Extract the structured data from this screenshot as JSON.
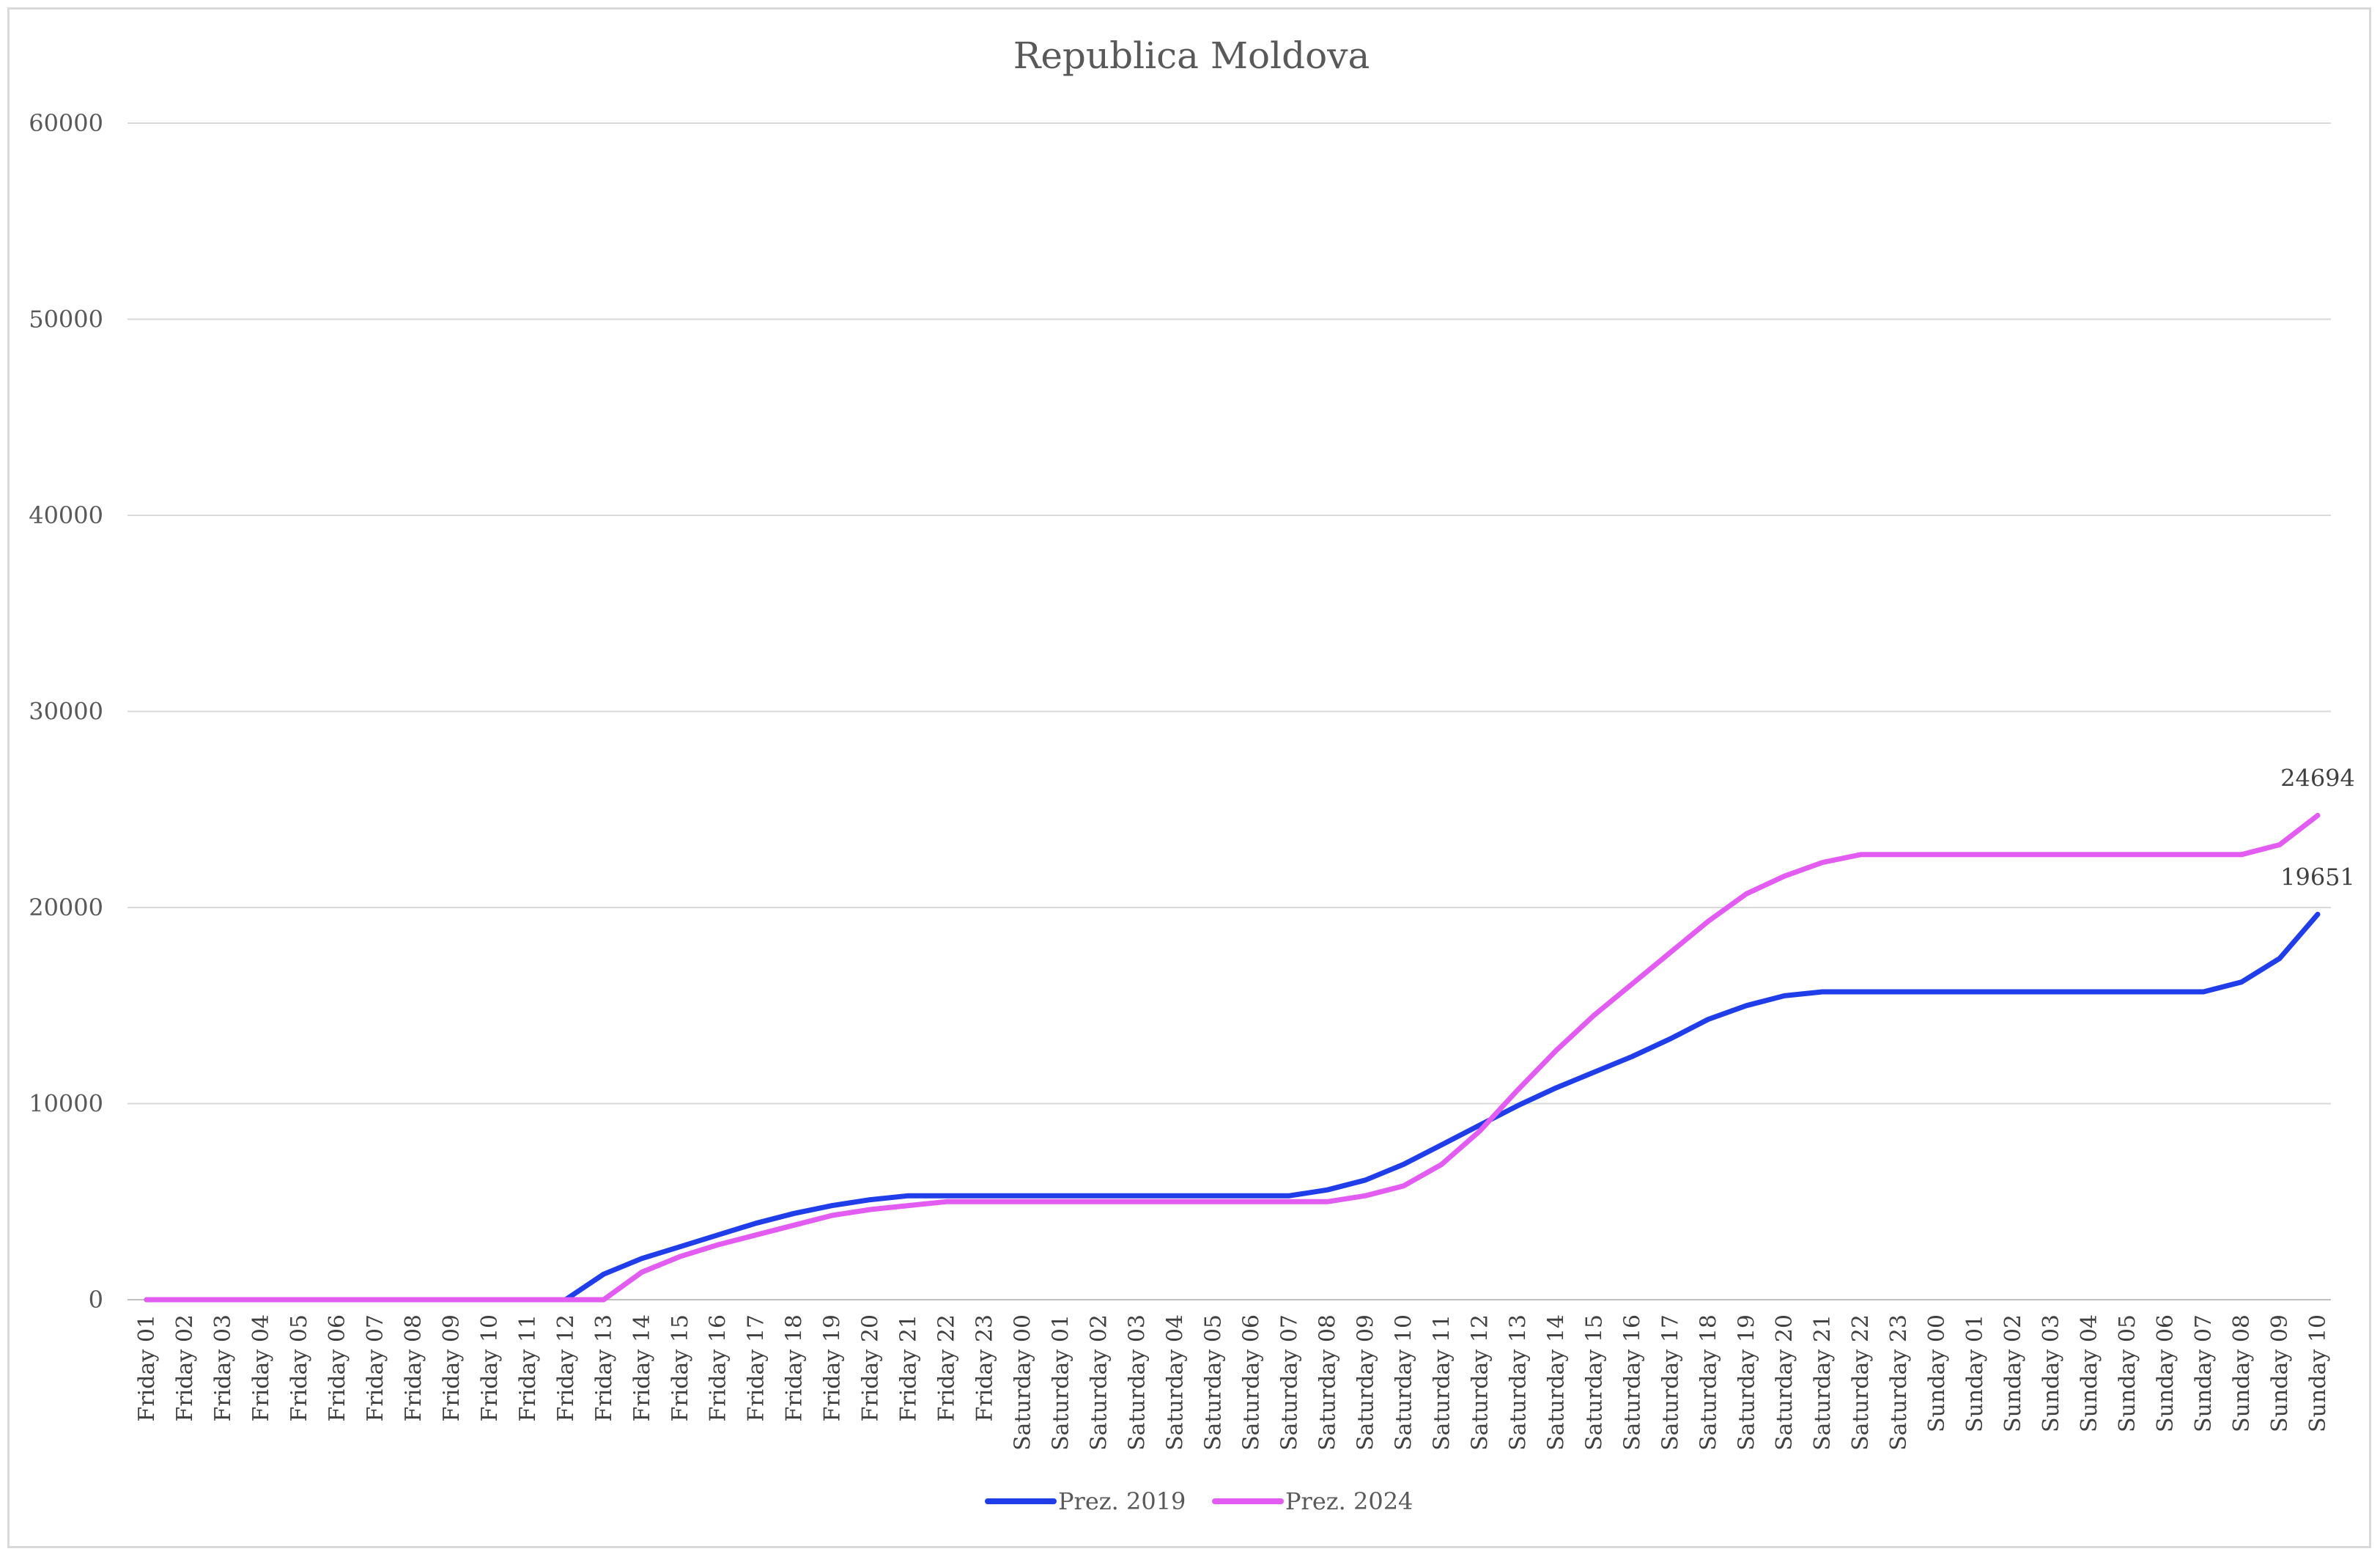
{
  "chart_data": {
    "type": "line",
    "title": "Republica Moldova",
    "xlabel": "",
    "ylabel": "",
    "ylim": [
      0,
      60000
    ],
    "yticks": [
      0,
      10000,
      20000,
      30000,
      40000,
      50000,
      60000
    ],
    "grid": true,
    "legend_position": "bottom",
    "categories": [
      "Friday 01",
      "Friday 02",
      "Friday 03",
      "Friday 04",
      "Friday 05",
      "Friday 06",
      "Friday 07",
      "Friday 08",
      "Friday 09",
      "Friday 10",
      "Friday 11",
      "Friday 12",
      "Friday 13",
      "Friday 14",
      "Friday 15",
      "Friday 16",
      "Friday 17",
      "Friday 18",
      "Friday 19",
      "Friday 20",
      "Friday 21",
      "Friday 22",
      "Friday 23",
      "Saturday 00",
      "Saturday 01",
      "Saturday 02",
      "Saturday 03",
      "Saturday 04",
      "Saturday 05",
      "Saturday 06",
      "Saturday 07",
      "Saturday 08",
      "Saturday 09",
      "Saturday 10",
      "Saturday 11",
      "Saturday 12",
      "Saturday 13",
      "Saturday 14",
      "Saturday 15",
      "Saturday 16",
      "Saturday 17",
      "Saturday 18",
      "Saturday 19",
      "Saturday 20",
      "Saturday 21",
      "Saturday 22",
      "Saturday 23",
      "Sunday 00",
      "Sunday 01",
      "Sunday 02",
      "Sunday 03",
      "Sunday 04",
      "Sunday 05",
      "Sunday 06",
      "Sunday 07",
      "Sunday 08",
      "Sunday 09",
      "Sunday 10"
    ],
    "series": [
      {
        "name": "Prez. 2019",
        "color": "#1f3de8",
        "values": [
          0,
          0,
          0,
          0,
          0,
          0,
          0,
          0,
          0,
          0,
          0,
          0,
          1300,
          2100,
          2700,
          3300,
          3900,
          4400,
          4800,
          5100,
          5300,
          5300,
          5300,
          5300,
          5300,
          5300,
          5300,
          5300,
          5300,
          5300,
          5300,
          5600,
          6100,
          6900,
          7900,
          8900,
          9900,
          10800,
          11600,
          12400,
          13300,
          14300,
          15000,
          15500,
          15700,
          15700,
          15700,
          15700,
          15700,
          15700,
          15700,
          15700,
          15700,
          15700,
          15700,
          16200,
          17400,
          19651
        ],
        "end_label": "19651"
      },
      {
        "name": "Prez. 2024",
        "color": "#e25cf2",
        "values": [
          0,
          0,
          0,
          0,
          0,
          0,
          0,
          0,
          0,
          0,
          0,
          0,
          0,
          1400,
          2200,
          2800,
          3300,
          3800,
          4300,
          4600,
          4800,
          5000,
          5000,
          5000,
          5000,
          5000,
          5000,
          5000,
          5000,
          5000,
          5000,
          5000,
          5300,
          5800,
          6900,
          8600,
          10700,
          12700,
          14500,
          16100,
          17700,
          19300,
          20700,
          21600,
          22300,
          22700,
          22700,
          22700,
          22700,
          22700,
          22700,
          22700,
          22700,
          22700,
          22700,
          22700,
          23200,
          24694
        ],
        "end_label": "24694"
      }
    ]
  }
}
